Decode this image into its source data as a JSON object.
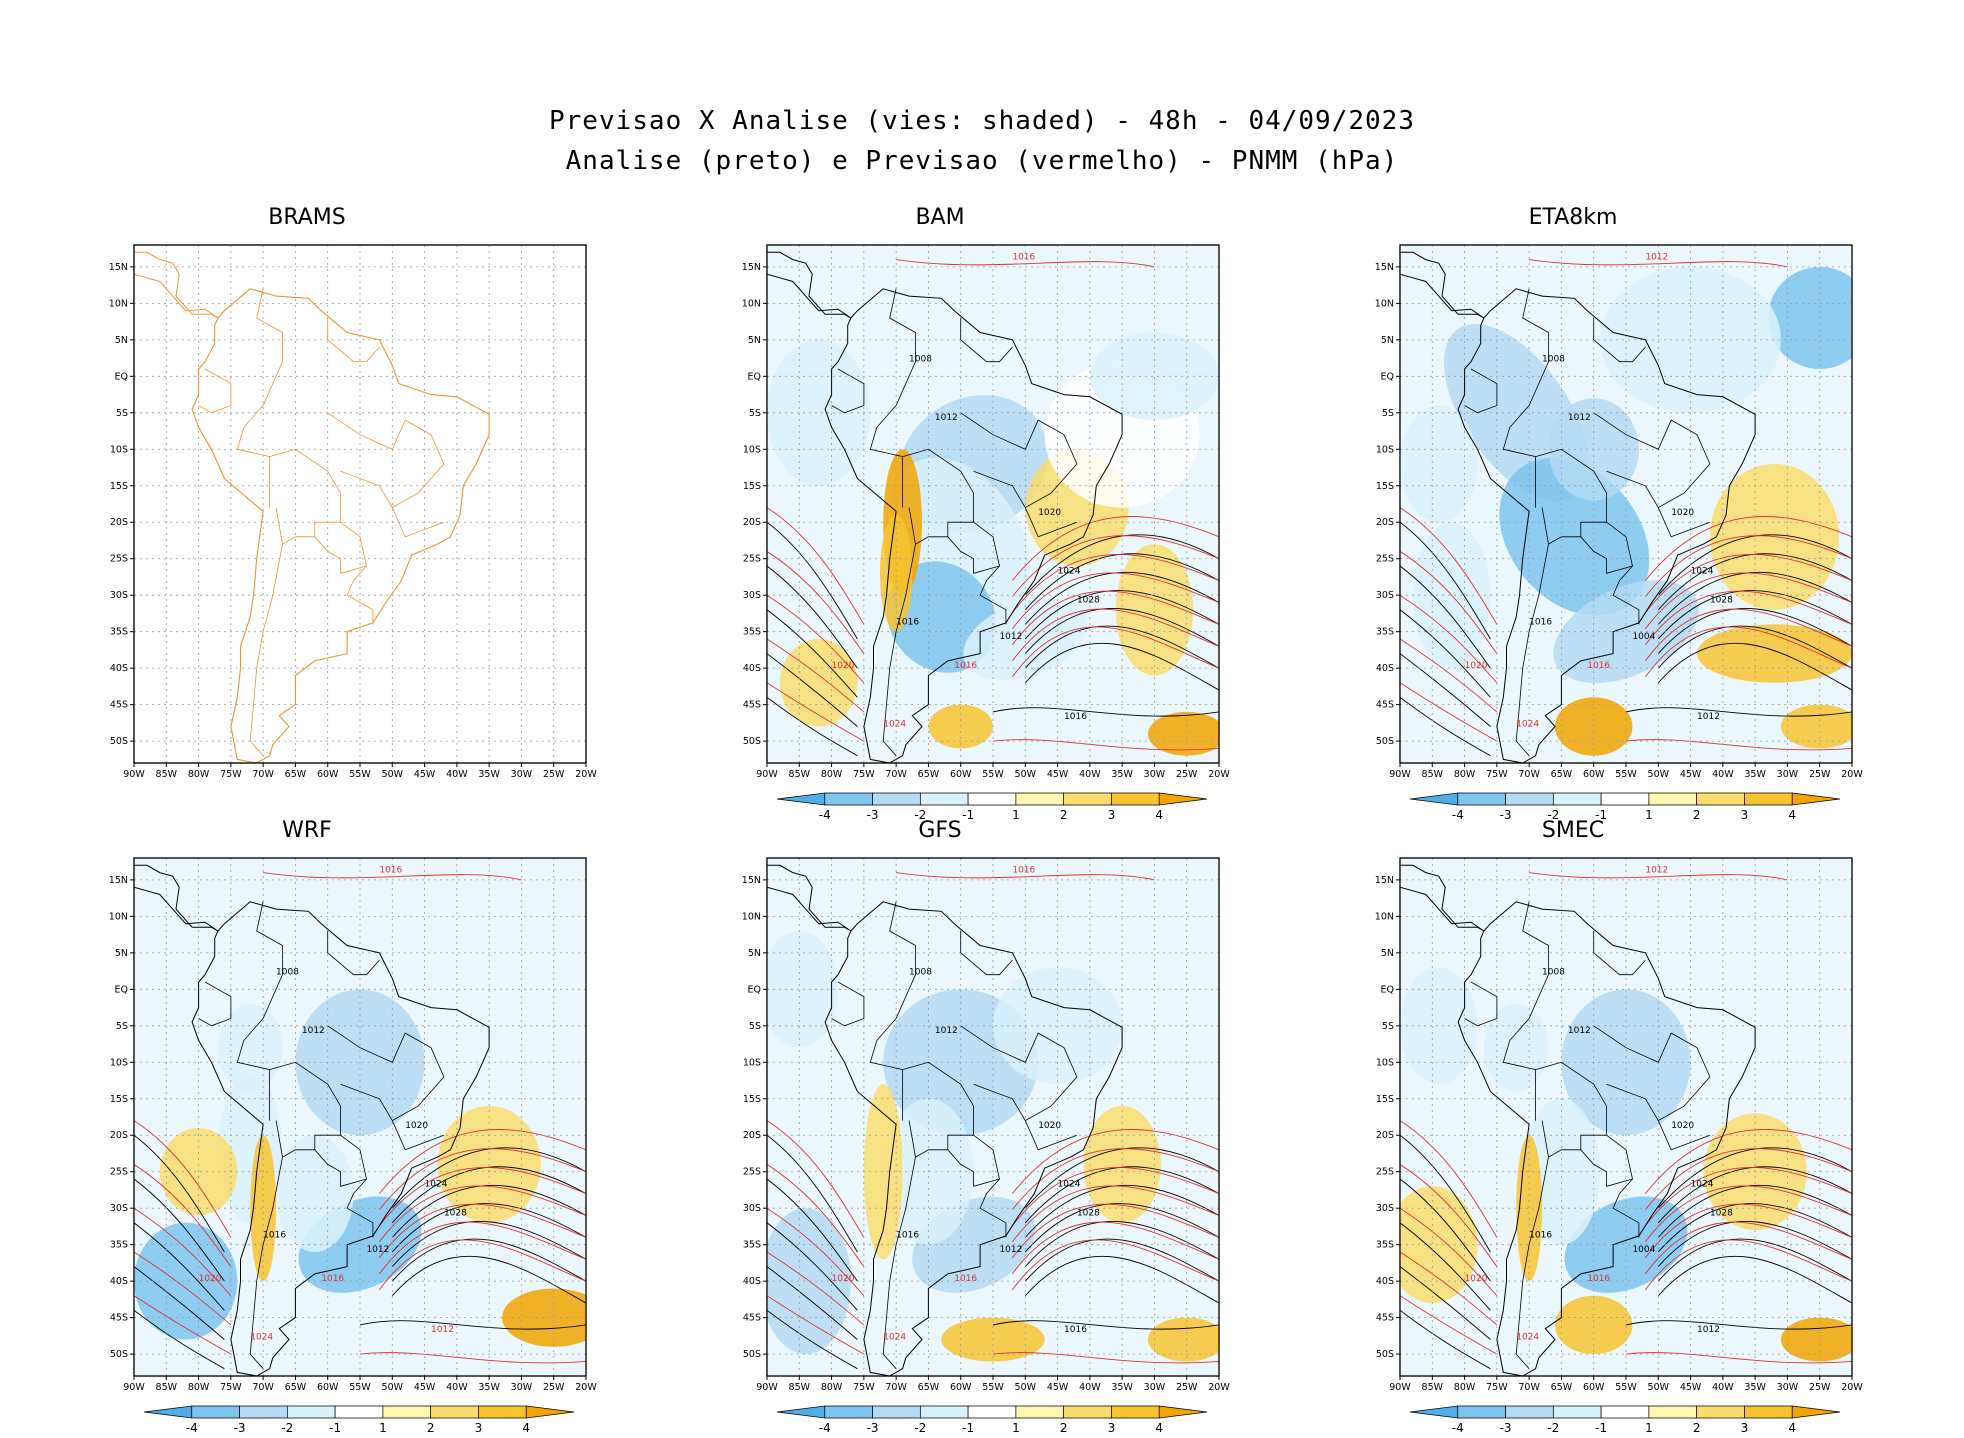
{
  "figure": {
    "title_line1": "Previsao X Analise (vies: shaded) - 48h - 04/09/2023",
    "title_line2": "Analise (preto) e Previsao (vermelho) - PNMM (hPa)"
  },
  "axes": {
    "lon_labels": [
      "90W",
      "85W",
      "80W",
      "75W",
      "70W",
      "65W",
      "60W",
      "55W",
      "50W",
      "45W",
      "40W",
      "35W",
      "30W",
      "25W",
      "20W"
    ],
    "lat_labels": [
      "15N",
      "10N",
      "5N",
      "EQ",
      "5S",
      "10S",
      "15S",
      "20S",
      "25S",
      "30S",
      "35S",
      "40S",
      "45S",
      "50S"
    ]
  },
  "colorbar": {
    "labels": [
      "-4",
      "-3",
      "-2",
      "-1",
      "1",
      "2",
      "3",
      "4"
    ],
    "colors": [
      "#4faee8",
      "#7fc4ef",
      "#b4dbf5",
      "#d9f1fb",
      "#ffffff",
      "#fff6b0",
      "#fadd6c",
      "#f7c430",
      "#f2a400"
    ]
  },
  "colors": {
    "analysis_contour": "#000000",
    "forecast_contour": "#e03030",
    "coastline": "#f0922e"
  },
  "panels": [
    {
      "id": "brams",
      "title": "BRAMS",
      "has_field": false,
      "labels": []
    },
    {
      "id": "bam",
      "title": "BAM",
      "has_field": true,
      "labels": [
        {
          "t": "1016",
          "c": "r"
        },
        {
          "t": "1012",
          "c": "k"
        },
        {
          "t": "1008",
          "c": "k"
        },
        {
          "t": "1016",
          "c": "k"
        },
        {
          "t": "1020",
          "c": "k"
        },
        {
          "t": "1024",
          "c": "k"
        },
        {
          "t": "1028",
          "c": "k"
        },
        {
          "t": "1012",
          "c": "k"
        },
        {
          "t": "1016",
          "c": "r"
        },
        {
          "t": "1020",
          "c": "r"
        },
        {
          "t": "1024",
          "c": "r"
        },
        {
          "t": "1016",
          "c": "k"
        }
      ]
    },
    {
      "id": "eta8km",
      "title": "ETA8km",
      "has_field": true,
      "labels": [
        {
          "t": "1012",
          "c": "r"
        },
        {
          "t": "1012",
          "c": "k"
        },
        {
          "t": "1008",
          "c": "k"
        },
        {
          "t": "1016",
          "c": "k"
        },
        {
          "t": "1020",
          "c": "k"
        },
        {
          "t": "1024",
          "c": "k"
        },
        {
          "t": "1028",
          "c": "k"
        },
        {
          "t": "1004",
          "c": "k"
        },
        {
          "t": "1016",
          "c": "r"
        },
        {
          "t": "1020",
          "c": "r"
        },
        {
          "t": "1024",
          "c": "r"
        },
        {
          "t": "1012",
          "c": "k"
        }
      ]
    },
    {
      "id": "wrf",
      "title": "WRF",
      "has_field": true,
      "labels": [
        {
          "t": "1016",
          "c": "r"
        },
        {
          "t": "1012",
          "c": "k"
        },
        {
          "t": "1008",
          "c": "k"
        },
        {
          "t": "1016",
          "c": "k"
        },
        {
          "t": "1020",
          "c": "k"
        },
        {
          "t": "1024",
          "c": "k"
        },
        {
          "t": "1028",
          "c": "k"
        },
        {
          "t": "1012",
          "c": "k"
        },
        {
          "t": "1016",
          "c": "r"
        },
        {
          "t": "1020",
          "c": "r"
        },
        {
          "t": "1024",
          "c": "r"
        },
        {
          "t": "1012",
          "c": "r"
        }
      ]
    },
    {
      "id": "gfs",
      "title": "GFS",
      "has_field": true,
      "labels": [
        {
          "t": "1016",
          "c": "r"
        },
        {
          "t": "1012",
          "c": "k"
        },
        {
          "t": "1008",
          "c": "k"
        },
        {
          "t": "1016",
          "c": "k"
        },
        {
          "t": "1020",
          "c": "k"
        },
        {
          "t": "1024",
          "c": "k"
        },
        {
          "t": "1028",
          "c": "k"
        },
        {
          "t": "1012",
          "c": "k"
        },
        {
          "t": "1016",
          "c": "r"
        },
        {
          "t": "1020",
          "c": "r"
        },
        {
          "t": "1024",
          "c": "r"
        },
        {
          "t": "1016",
          "c": "k"
        }
      ]
    },
    {
      "id": "smec",
      "title": "SMEC",
      "has_field": true,
      "labels": [
        {
          "t": "1012",
          "c": "r"
        },
        {
          "t": "1012",
          "c": "k"
        },
        {
          "t": "1008",
          "c": "k"
        },
        {
          "t": "1016",
          "c": "k"
        },
        {
          "t": "1020",
          "c": "k"
        },
        {
          "t": "1024",
          "c": "k"
        },
        {
          "t": "1028",
          "c": "k"
        },
        {
          "t": "1004",
          "c": "k"
        },
        {
          "t": "1016",
          "c": "r"
        },
        {
          "t": "1020",
          "c": "r"
        },
        {
          "t": "1024",
          "c": "r"
        },
        {
          "t": "1012",
          "c": "k"
        }
      ]
    }
  ]
}
